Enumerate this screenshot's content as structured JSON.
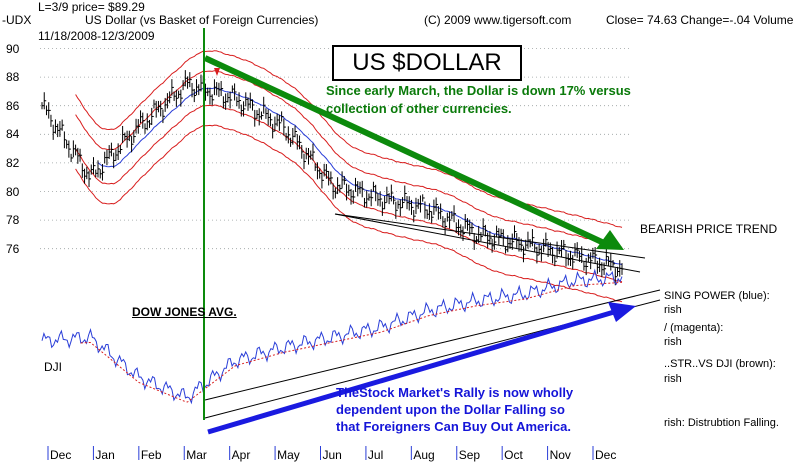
{
  "header": {
    "l_price": "L=3/9   price= $89.29",
    "symbol": "-UDX",
    "name": "US Dollar (vs Basket of Foreign Currencies)",
    "copyright": "(C) 2009 www.tigersoft.com",
    "close": "Close=  74.63  Change=-.04 Volume",
    "date_range": "11/18/2008-12/3/2009"
  },
  "title_box": "US $DOLLAR",
  "annotations": {
    "green_line1": "Since early March, the Dollar is down 17% versus",
    "green_line2": "collection of other currencies.",
    "bearish": "BEARISH PRICE TREND",
    "dow_label": "DOW JONES AVG.",
    "dji_label": "DJI",
    "blue_line1": "TheStock Market's Rally is now wholly",
    "blue_line2": "dependent upon the Dollar Falling so",
    "blue_line3": "that Foreigners Can Buy Out America."
  },
  "right_panel": {
    "r1": "SING POWER (blue):",
    "r2": "rish",
    "r3": "/ (magenta):",
    "r4": "rish",
    "r5": "..STR..VS DJI (brown):",
    "r6": "rish",
    "r7": "rish:  Distrubtion Falling."
  },
  "colors": {
    "price": "#000000",
    "band": "#d81e1e",
    "ma_blue": "#2a3ed8",
    "trend_green": "#0c8a0c",
    "arrow_blue": "#1a1ae0",
    "dji_blue": "#2a3ed8",
    "dji_ma": "#d81e1e",
    "grid": "#9aa0a0"
  },
  "chart_data": {
    "type": "line",
    "title": "US Dollar (vs Basket of Foreign Currencies)",
    "ylim": [
      74,
      91
    ],
    "yticks": [
      76,
      78,
      80,
      82,
      84,
      86,
      88,
      90
    ],
    "x": [
      "Dec",
      "Jan",
      "Feb",
      "Mar",
      "Apr",
      "May",
      "Jun",
      "Jul",
      "Aug",
      "Sep",
      "Oct",
      "Nov",
      "Dec"
    ],
    "series": [
      {
        "name": "US Dollar",
        "values": [
          86.0,
          81.0,
          84.5,
          87.5,
          86.5,
          84.5,
          80.5,
          79.5,
          78.8,
          77.0,
          76.3,
          75.5,
          74.6
        ]
      },
      {
        "name": "DJI",
        "values": [
          8500,
          8600,
          7400,
          6800,
          7900,
          8300,
          8600,
          8900,
          9400,
          9700,
          9900,
          10300,
          10400
        ]
      }
    ]
  }
}
